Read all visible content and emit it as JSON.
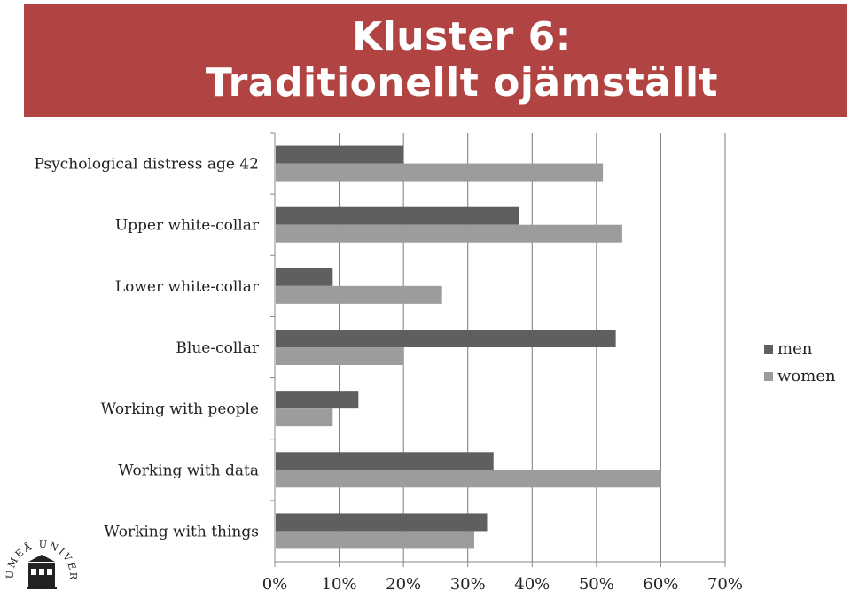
{
  "title": {
    "line1": "Kluster 6:",
    "line2": "Traditionellt ojämställt"
  },
  "logo": {
    "text": "UMEÅ UNIVERSITET"
  },
  "colors": {
    "banner": "#b14442",
    "men": "#5f5f5f",
    "women": "#9c9c9c",
    "grid": "#7a7a7a"
  },
  "chart_data": {
    "type": "bar",
    "orientation": "horizontal",
    "categories": [
      "Psychological distress age 42",
      "Upper white-collar",
      "Lower white-collar",
      "Blue-collar",
      "Working with people",
      "Working with data",
      "Working with things"
    ],
    "series": [
      {
        "name": "men",
        "values": [
          20,
          38,
          9,
          53,
          13,
          34,
          33
        ]
      },
      {
        "name": "women",
        "values": [
          51,
          54,
          26,
          20,
          9,
          60,
          31
        ]
      }
    ],
    "x_ticks": [
      "0%",
      "10%",
      "20%",
      "30%",
      "40%",
      "50%",
      "60%",
      "70%"
    ],
    "xlim": [
      0,
      70
    ],
    "grid": true,
    "legend_position": "right"
  }
}
